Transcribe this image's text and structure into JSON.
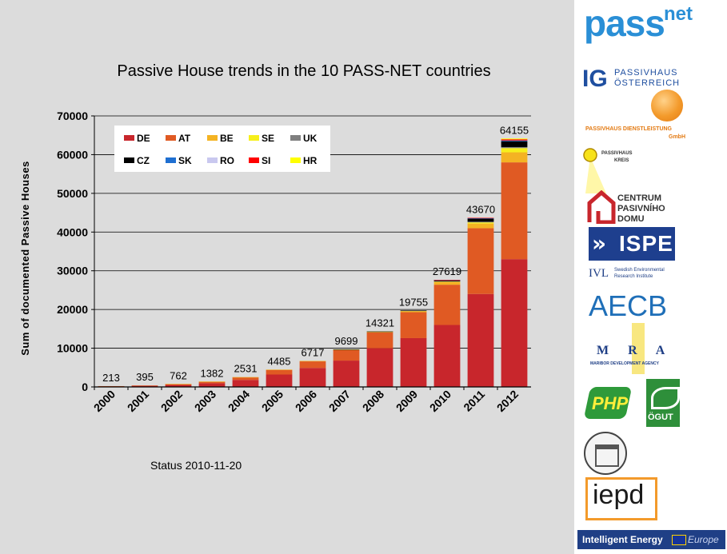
{
  "chart_data": {
    "type": "bar",
    "title": "Passive House trends in the 10 PASS-NET countries",
    "ylabel": "Sum of documented Passive Houses",
    "xlabel": "",
    "ylim": [
      0,
      70000
    ],
    "yticks": [
      0,
      10000,
      20000,
      30000,
      40000,
      50000,
      60000,
      70000
    ],
    "grid": true,
    "legend_position": "top-left",
    "stacked": true,
    "categories": [
      "2000",
      "2001",
      "2002",
      "2003",
      "2004",
      "2005",
      "2006",
      "2007",
      "2008",
      "2009",
      "2010",
      "2011",
      "2012"
    ],
    "totals": [
      213,
      395,
      762,
      1382,
      2531,
      4485,
      6717,
      9699,
      14321,
      19755,
      27619,
      43670,
      64155
    ],
    "series": [
      {
        "name": "DE",
        "color": "#c8262c",
        "values": [
          150,
          280,
          520,
          950,
          1800,
          3200,
          4900,
          6800,
          10000,
          12600,
          16000,
          24000,
          33000
        ]
      },
      {
        "name": "AT",
        "color": "#e05a23",
        "values": [
          63,
          115,
          230,
          420,
          700,
          1200,
          1700,
          2700,
          4100,
          6700,
          10400,
          17000,
          25000
        ]
      },
      {
        "name": "BE",
        "color": "#f4b323",
        "values": [
          0,
          0,
          12,
          12,
          31,
          85,
          117,
          149,
          171,
          305,
          750,
          1200,
          2600
        ]
      },
      {
        "name": "SE",
        "color": "#f6ef1c",
        "values": [
          0,
          0,
          0,
          0,
          0,
          0,
          0,
          30,
          30,
          80,
          100,
          300,
          1100
        ]
      },
      {
        "name": "UK",
        "color": "#7f7f7f",
        "values": [
          0,
          0,
          0,
          0,
          0,
          0,
          0,
          0,
          0,
          20,
          50,
          170,
          255
        ]
      },
      {
        "name": "CZ",
        "color": "#000000",
        "values": [
          0,
          0,
          0,
          0,
          0,
          0,
          0,
          20,
          20,
          50,
          300,
          800,
          1500
        ]
      },
      {
        "name": "SK",
        "color": "#1f6fd1",
        "values": [
          0,
          0,
          0,
          0,
          0,
          0,
          0,
          0,
          0,
          0,
          10,
          100,
          200
        ]
      },
      {
        "name": "RO",
        "color": "#c9c8ef",
        "values": [
          0,
          0,
          0,
          0,
          0,
          0,
          0,
          0,
          0,
          0,
          0,
          0,
          0
        ]
      },
      {
        "name": "SI",
        "color": "#ff0000",
        "values": [
          0,
          0,
          0,
          0,
          0,
          0,
          0,
          0,
          0,
          0,
          9,
          100,
          300
        ]
      },
      {
        "name": "HR",
        "color": "#ffff00",
        "values": [
          0,
          0,
          0,
          0,
          0,
          0,
          0,
          0,
          0,
          0,
          0,
          0,
          200
        ]
      }
    ],
    "note": "Status 2010-11-20"
  },
  "sidebar": {
    "passnet": {
      "main": "pass",
      "sup": "net"
    },
    "ig": {
      "mark": "IG",
      "line1": "PASSIVHAUS",
      "line2": "ÖSTERREICH"
    },
    "pdl": {
      "line1": "PASSIVHAUS DIENSTLEISTUNG",
      "line2": "GmbH"
    },
    "kreis": {
      "line1": "PASSIVHAUS",
      "line2": "KREIS"
    },
    "centrum": {
      "line1": "CENTRUM",
      "line2": "PASIVNÍHO",
      "line3": "DOMU"
    },
    "ispe": {
      "text": "ISPE"
    },
    "ivl": {
      "mark": "IVL",
      "line1": "Swedish Environmental",
      "line2": "Research Institute"
    },
    "aecb": {
      "text": "AECB"
    },
    "mra": {
      "text": "M R A",
      "sub": "MARIBOR DEVELOPMENT AGENCY"
    },
    "php": {
      "text": "PHP"
    },
    "ogut": {
      "text": "ÖGUT"
    },
    "iepd": {
      "text": "iepd"
    },
    "iee": {
      "text": "Intelligent Energy",
      "europe": "Europe"
    }
  }
}
